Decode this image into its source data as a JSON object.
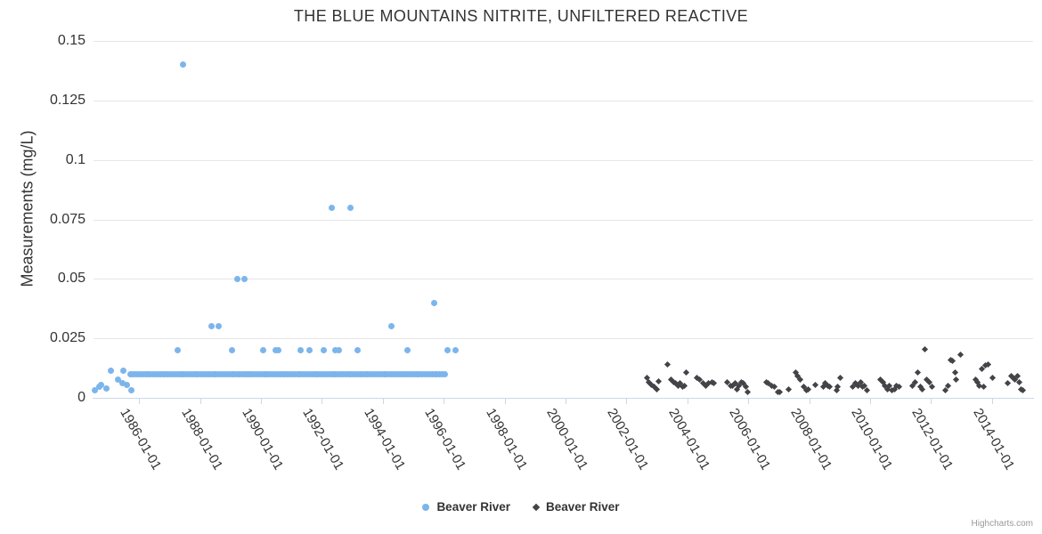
{
  "chart_data": {
    "type": "scatter",
    "title": "THE BLUE MOUNTAINS NITRITE, UNFILTERED REACTIVE",
    "xlabel": "",
    "ylabel": "Measurements (mg/L)",
    "credit": "Highcharts.com",
    "grid": "horizontal",
    "legend_position": "bottom-center",
    "x_min": 1984.5,
    "x_max": 2015.35,
    "y_min": 0,
    "y_max": 0.15,
    "y_ticks": [
      0,
      0.025,
      0.05,
      0.075,
      0.1,
      0.125,
      0.15
    ],
    "y_tick_labels": [
      "0",
      "0.025",
      "0.05",
      "0.075",
      "0.1",
      "0.125",
      "0.15"
    ],
    "x_ticks": [
      1986,
      1988,
      1990,
      1992,
      1994,
      1996,
      1998,
      2000,
      2002,
      2004,
      2006,
      2008,
      2010,
      2012,
      2014
    ],
    "x_tick_labels": [
      "1986-01-01",
      "1988-01-01",
      "1990-01-01",
      "1992-01-01",
      "1994-01-01",
      "1996-01-01",
      "1998-01-01",
      "2000-01-01",
      "2002-01-01",
      "2004-01-01",
      "2006-01-01",
      "2008-01-01",
      "2010-01-01",
      "2012-01-01",
      "2014-01-01"
    ],
    "series": [
      {
        "name": "Beaver River",
        "marker": "circle",
        "color": "#7cb5ec",
        "points": [
          [
            1984.55,
            0.003
          ],
          [
            1984.7,
            0.0045
          ],
          [
            1984.76,
            0.0055
          ],
          [
            1984.92,
            0.004
          ],
          [
            1985.08,
            0.0115
          ],
          [
            1985.29,
            0.0075
          ],
          [
            1985.46,
            0.006
          ],
          [
            1985.49,
            0.0115
          ],
          [
            1985.61,
            0.0055
          ],
          [
            1985.73,
            0.003
          ],
          [
            1987.25,
            0.02
          ],
          [
            1987.45,
            0.14
          ],
          [
            1988.38,
            0.03
          ],
          [
            1988.61,
            0.03
          ],
          [
            1989.06,
            0.02
          ],
          [
            1989.23,
            0.05
          ],
          [
            1989.46,
            0.05
          ],
          [
            1990.06,
            0.02
          ],
          [
            1990.47,
            0.02
          ],
          [
            1990.58,
            0.02
          ],
          [
            1991.31,
            0.02
          ],
          [
            1991.58,
            0.02
          ],
          [
            1992.07,
            0.02
          ],
          [
            1992.33,
            0.08
          ],
          [
            1992.45,
            0.02
          ],
          [
            1992.57,
            0.02
          ],
          [
            1992.93,
            0.08
          ],
          [
            1993.18,
            0.02
          ],
          [
            1994.27,
            0.03
          ],
          [
            1994.82,
            0.02
          ],
          [
            1995.69,
            0.04
          ],
          [
            1996.11,
            0.02
          ],
          [
            1996.4,
            0.02
          ]
        ],
        "dense_band": {
          "comment": "near-continuous run of detection-limit readings",
          "from": 1985.7,
          "to": 1996.05,
          "step_years": 0.08333,
          "value": 0.01
        }
      },
      {
        "name": "Beaver River",
        "marker": "diamond",
        "color": "#434348",
        "points": [
          [
            2002.66,
            0.0085
          ],
          [
            2002.74,
            0.0065
          ],
          [
            2002.83,
            0.0055
          ],
          [
            2002.91,
            0.0045
          ],
          [
            2002.99,
            0.0035
          ],
          [
            2003.04,
            0.007
          ],
          [
            2003.34,
            0.014
          ],
          [
            2003.46,
            0.0075
          ],
          [
            2003.54,
            0.0065
          ],
          [
            2003.61,
            0.006
          ],
          [
            2003.69,
            0.005
          ],
          [
            2003.75,
            0.006
          ],
          [
            2003.83,
            0.0045
          ],
          [
            2003.91,
            0.005
          ],
          [
            2003.97,
            0.0105
          ],
          [
            2004.32,
            0.0085
          ],
          [
            2004.39,
            0.0075
          ],
          [
            2004.53,
            0.006
          ],
          [
            2004.61,
            0.005
          ],
          [
            2004.68,
            0.006
          ],
          [
            2004.8,
            0.0065
          ],
          [
            2004.88,
            0.006
          ],
          [
            2005.31,
            0.0065
          ],
          [
            2005.41,
            0.005
          ],
          [
            2005.49,
            0.005
          ],
          [
            2005.56,
            0.006
          ],
          [
            2005.62,
            0.0035
          ],
          [
            2005.7,
            0.005
          ],
          [
            2005.78,
            0.0065
          ],
          [
            2005.84,
            0.006
          ],
          [
            2005.91,
            0.0045
          ],
          [
            2005.99,
            0.0025
          ],
          [
            2006.58,
            0.0065
          ],
          [
            2006.65,
            0.006
          ],
          [
            2006.77,
            0.005
          ],
          [
            2006.85,
            0.0045
          ],
          [
            2006.96,
            0.0025
          ],
          [
            2007.04,
            0.0025
          ],
          [
            2007.31,
            0.0035
          ],
          [
            2007.55,
            0.0105
          ],
          [
            2007.63,
            0.009
          ],
          [
            2007.71,
            0.0075
          ],
          [
            2007.82,
            0.0045
          ],
          [
            2007.9,
            0.003
          ],
          [
            2007.98,
            0.0035
          ],
          [
            2008.21,
            0.0055
          ],
          [
            2008.45,
            0.0045
          ],
          [
            2008.53,
            0.006
          ],
          [
            2008.6,
            0.005
          ],
          [
            2008.68,
            0.0045
          ],
          [
            2008.89,
            0.003
          ],
          [
            2008.94,
            0.0045
          ],
          [
            2009.02,
            0.0085
          ],
          [
            2009.43,
            0.0045
          ],
          [
            2009.51,
            0.006
          ],
          [
            2009.59,
            0.005
          ],
          [
            2009.68,
            0.0065
          ],
          [
            2009.74,
            0.0045
          ],
          [
            2009.82,
            0.005
          ],
          [
            2009.9,
            0.003
          ],
          [
            2010.33,
            0.0075
          ],
          [
            2010.41,
            0.0065
          ],
          [
            2010.48,
            0.005
          ],
          [
            2010.56,
            0.0035
          ],
          [
            2010.62,
            0.005
          ],
          [
            2010.72,
            0.003
          ],
          [
            2010.79,
            0.0035
          ],
          [
            2010.87,
            0.005
          ],
          [
            2010.95,
            0.0045
          ],
          [
            2011.4,
            0.005
          ],
          [
            2011.48,
            0.0065
          ],
          [
            2011.57,
            0.0105
          ],
          [
            2011.65,
            0.0045
          ],
          [
            2011.71,
            0.0035
          ],
          [
            2011.79,
            0.0205
          ],
          [
            2011.87,
            0.0075
          ],
          [
            2011.94,
            0.0065
          ],
          [
            2012.02,
            0.0045
          ],
          [
            2012.47,
            0.003
          ],
          [
            2012.57,
            0.005
          ],
          [
            2012.65,
            0.016
          ],
          [
            2012.71,
            0.0155
          ],
          [
            2012.78,
            0.0105
          ],
          [
            2012.82,
            0.0075
          ],
          [
            2012.98,
            0.018
          ],
          [
            2013.45,
            0.0075
          ],
          [
            2013.52,
            0.0065
          ],
          [
            2013.58,
            0.005
          ],
          [
            2013.66,
            0.012
          ],
          [
            2013.74,
            0.0045
          ],
          [
            2013.8,
            0.0135
          ],
          [
            2013.88,
            0.014
          ],
          [
            2014.03,
            0.0085
          ],
          [
            2014.52,
            0.006
          ],
          [
            2014.62,
            0.009
          ],
          [
            2014.68,
            0.0085
          ],
          [
            2014.75,
            0.0075
          ],
          [
            2014.83,
            0.009
          ],
          [
            2014.91,
            0.0065
          ],
          [
            2014.95,
            0.0035
          ],
          [
            2015.01,
            0.003
          ]
        ]
      }
    ]
  }
}
